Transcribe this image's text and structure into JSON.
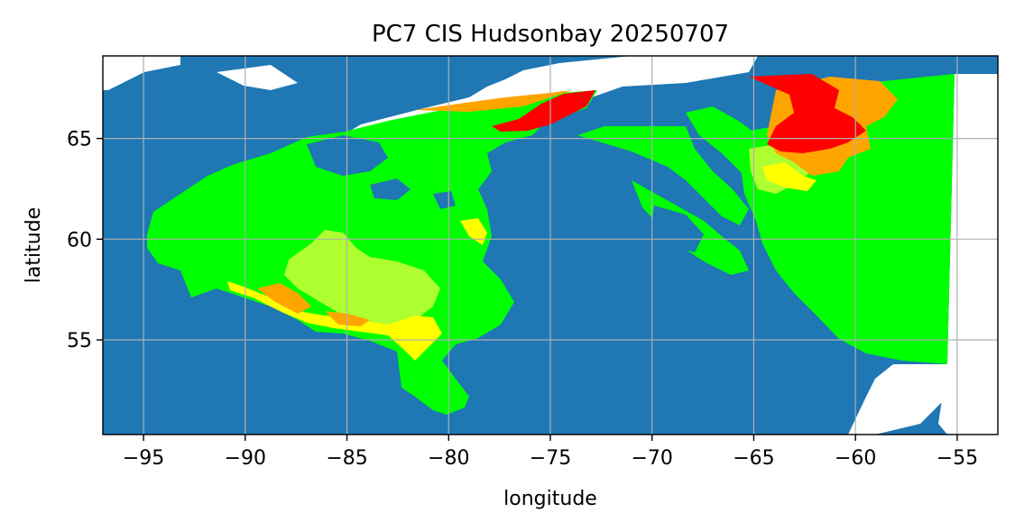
{
  "title": "PC7 CIS Hudsonbay 20250707",
  "xlabel": "longitude",
  "ylabel": "latitude",
  "axes": {
    "xlim": [
      -97,
      -53
    ],
    "ylim": [
      50.3,
      69.1
    ],
    "xticks": [
      -95,
      -90,
      -85,
      -80,
      -75,
      -70,
      -65,
      -60,
      -55
    ],
    "xtick_labels": [
      "−95",
      "−90",
      "−85",
      "−80",
      "−75",
      "−70",
      "−65",
      "−60",
      "−55"
    ],
    "yticks": [
      55,
      60,
      65
    ],
    "ytick_labels": [
      "55",
      "60",
      "65"
    ],
    "grid": true,
    "grid_color": "#b0b0b0"
  },
  "colors": {
    "land": "#1f77b4",
    "background": "#ffffff",
    "ice_green": "#00ff00",
    "ice_yellowgreen": "#adff2f",
    "ice_yellow": "#ffff00",
    "ice_orange": "#ffa500",
    "ice_red": "#ff0000"
  },
  "chart_data": {
    "type": "map",
    "projection": "plate carree (lon/lat)",
    "regions": [
      {
        "class": "green",
        "description_lonlat": [
          [
            -95.2,
            60
          ],
          [
            -93,
            62.3
          ],
          [
            -89,
            64
          ],
          [
            -85.5,
            65
          ],
          [
            -80,
            66.3
          ],
          [
            -72,
            67.4
          ],
          [
            -77,
            64.2
          ],
          [
            -79,
            62.5
          ],
          [
            -77.5,
            60
          ],
          [
            -78,
            57
          ],
          [
            -76.5,
            55.6
          ],
          [
            -79,
            55
          ],
          [
            -79.5,
            51.8
          ],
          [
            -80.5,
            52.5
          ],
          [
            -82,
            55.5
          ],
          [
            -87,
            55.8
          ],
          [
            -92.5,
            57
          ]
        ]
      },
      {
        "class": "green",
        "description_lonlat": [
          [
            -69,
            63.5
          ],
          [
            -66,
            64.5
          ],
          [
            -63,
            66
          ],
          [
            -57,
            68.2
          ],
          [
            -54.5,
            68.2
          ],
          [
            -55,
            53.8
          ],
          [
            -61,
            55.5
          ],
          [
            -65,
            58.5
          ],
          [
            -68,
            61
          ]
        ]
      }
    ]
  }
}
